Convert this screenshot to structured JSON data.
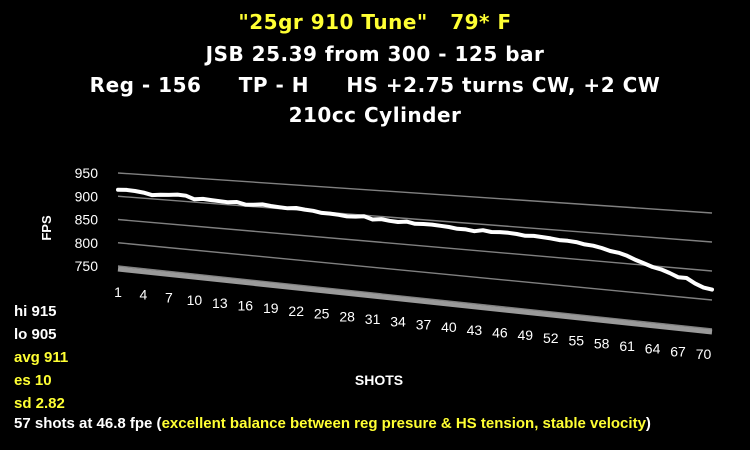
{
  "colors": {
    "background": "#000000",
    "yellow": "#ffff33",
    "white": "#ffffff",
    "grid": "#808080"
  },
  "titles": {
    "line1": "\"25gr 910 Tune\"   79* F",
    "line2": "JSB 25.39 from 300 - 125 bar",
    "line3": "Reg - 156     TP - H     HS +2.75 turns CW, +2 CW",
    "line4": "210cc Cylinder"
  },
  "stats": {
    "hi": "hi 915",
    "lo": "lo 905",
    "avg": "avg 911",
    "es": "es 10",
    "sd": "sd 2.82"
  },
  "footer": {
    "prefix": "57 shots at 46.8 fpe (",
    "highlight": "excellent balance between reg presure & HS tension, stable velocity",
    "suffix": ")"
  },
  "chart_data": {
    "type": "line",
    "title": "",
    "xlabel": "SHOTS",
    "ylabel": "FPS",
    "ylim": [
      750,
      950
    ],
    "yticks": [
      750,
      800,
      850,
      900,
      950
    ],
    "xtick_labels": [
      "1",
      "4",
      "7",
      "10",
      "13",
      "16",
      "19",
      "22",
      "25",
      "28",
      "31",
      "34",
      "37",
      "40",
      "43",
      "46",
      "49",
      "52",
      "55",
      "58",
      "61",
      "64",
      "67",
      "70"
    ],
    "grid": true,
    "series": [
      {
        "color": "#ffffff",
        "x": [
          1,
          2,
          3,
          4,
          5,
          6,
          7,
          8,
          9,
          10,
          11,
          12,
          13,
          14,
          15,
          16,
          17,
          18,
          19,
          20,
          21,
          22,
          23,
          24,
          25,
          26,
          27,
          28,
          29,
          30,
          31,
          32,
          33,
          34,
          35,
          36,
          37,
          38,
          39,
          40,
          41,
          42,
          43,
          44,
          45,
          46,
          47,
          48,
          49,
          50,
          51,
          52,
          53,
          54,
          55,
          56,
          57,
          58,
          59,
          60,
          61,
          62,
          63,
          64,
          65,
          66,
          67,
          68,
          69,
          70,
          71
        ],
        "values": [
          914,
          915,
          914,
          912,
          908,
          910,
          911,
          913,
          912,
          906,
          908,
          907,
          906,
          905,
          907,
          903,
          904,
          906,
          904,
          903,
          902,
          904,
          902,
          901,
          898,
          898,
          897,
          895,
          896,
          898,
          893,
          895,
          893,
          892,
          894,
          891,
          892,
          892,
          891,
          890,
          888,
          888,
          886,
          889,
          887,
          888,
          888,
          887,
          885,
          886,
          885,
          884,
          882,
          882,
          881,
          878,
          877,
          874,
          870,
          868,
          864,
          858,
          853,
          848,
          845,
          840,
          834,
          834,
          826,
          820,
          818
        ]
      }
    ]
  }
}
